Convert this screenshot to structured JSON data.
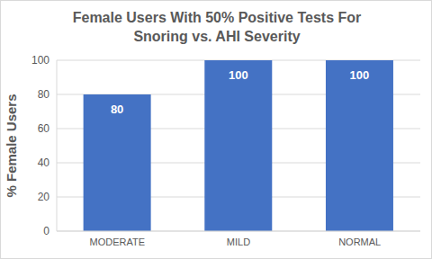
{
  "chart_data": {
    "type": "bar",
    "title": "Female Users With 50% Positive Tests For Snoring vs. AHI Severity",
    "y_label": "% Female Users",
    "categories": [
      "MODERATE",
      "MILD",
      "NORMAL"
    ],
    "values": [
      80,
      100,
      100
    ],
    "color": "#4472c4",
    "ylim": [
      0,
      100
    ],
    "yticks": [
      0,
      20,
      40,
      60,
      80,
      100
    ],
    "grid": true,
    "data_labels": true
  }
}
